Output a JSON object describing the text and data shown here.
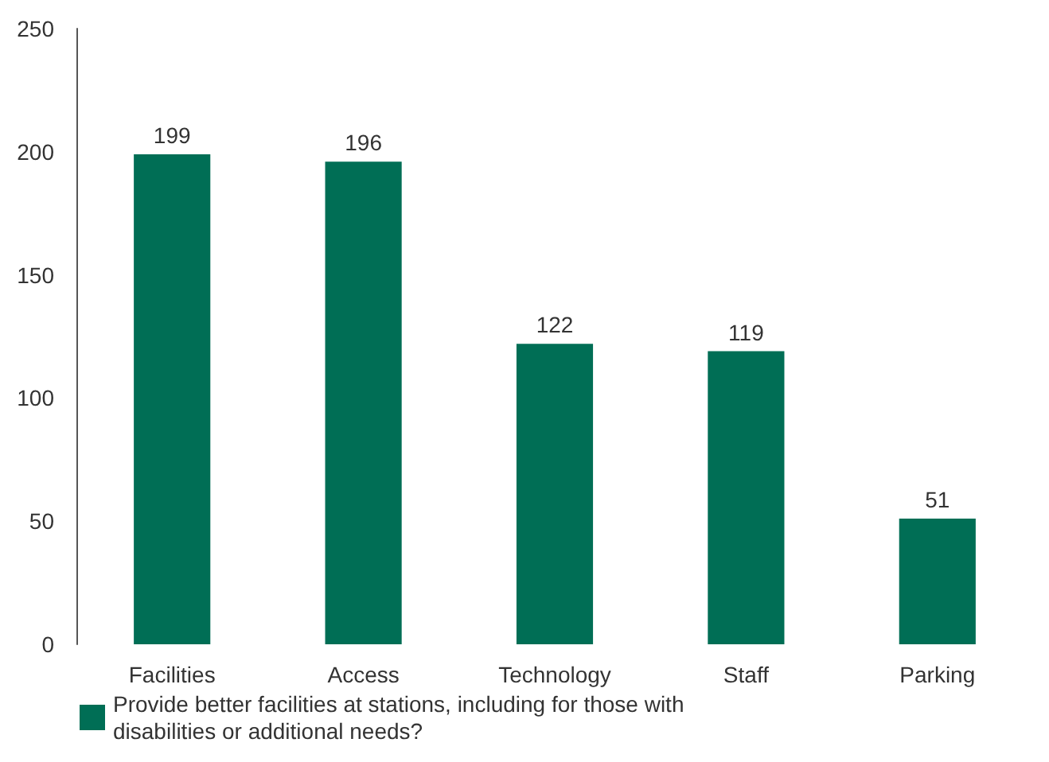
{
  "chart_data": {
    "type": "bar",
    "categories": [
      "Facilities",
      "Access",
      "Technology",
      "Staff",
      "Parking"
    ],
    "series": [
      {
        "name": "Provide better facilities at stations, including for those with disabilities or additional needs?",
        "color": "#006e55",
        "values": [
          199,
          196,
          122,
          119,
          51
        ]
      }
    ],
    "ylim": [
      0,
      250
    ],
    "yticks": [
      0,
      50,
      100,
      150,
      200,
      250
    ],
    "data_labels": true,
    "grid": false,
    "legend": "bottom left"
  }
}
